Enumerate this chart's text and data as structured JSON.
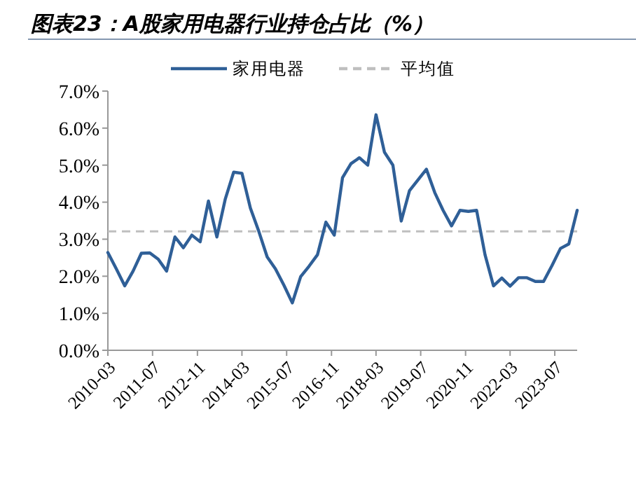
{
  "chart_data": {
    "type": "line",
    "title": "图表23：A股家用电器行业持仓占比（%）",
    "x": [
      "2010-03",
      "2010-06",
      "2010-09",
      "2010-12",
      "2011-03",
      "2011-06",
      "2011-09",
      "2011-12",
      "2012-03",
      "2012-06",
      "2012-09",
      "2012-12",
      "2013-03",
      "2013-06",
      "2013-09",
      "2013-12",
      "2014-03",
      "2014-06",
      "2014-09",
      "2014-12",
      "2015-03",
      "2015-06",
      "2015-09",
      "2015-12",
      "2016-03",
      "2016-06",
      "2016-09",
      "2016-12",
      "2017-03",
      "2017-06",
      "2017-09",
      "2017-12",
      "2018-03",
      "2018-06",
      "2018-09",
      "2018-12",
      "2019-03",
      "2019-06",
      "2019-09",
      "2019-12",
      "2020-03",
      "2020-06",
      "2020-09",
      "2020-12",
      "2021-03",
      "2021-06",
      "2021-09",
      "2021-12",
      "2022-03",
      "2022-06",
      "2022-09",
      "2022-12",
      "2023-03",
      "2023-06",
      "2023-09",
      "2023-12",
      "2024-03"
    ],
    "series": [
      {
        "name": "家用电器",
        "color": "#2f5f97",
        "values": [
          2.64,
          2.2,
          1.74,
          2.14,
          2.62,
          2.63,
          2.46,
          2.14,
          3.06,
          2.77,
          3.11,
          2.93,
          4.03,
          3.06,
          4.09,
          4.81,
          4.78,
          3.84,
          3.21,
          2.52,
          2.2,
          1.76,
          1.28,
          1.99,
          2.27,
          2.58,
          3.46,
          3.11,
          4.66,
          5.04,
          5.2,
          5.0,
          6.36,
          5.35,
          5.0,
          3.49,
          4.31,
          4.6,
          4.89,
          4.26,
          3.78,
          3.36,
          3.78,
          3.75,
          3.78,
          2.58,
          1.74,
          1.95,
          1.73,
          1.96,
          1.96,
          1.86,
          1.86,
          2.29,
          2.75,
          2.87,
          3.78
        ]
      }
    ],
    "ref_lines": [
      {
        "axis": "y",
        "value": 3.21,
        "label": "平均值",
        "color": "#bfbfbf",
        "line_style": "dashed"
      }
    ],
    "xlim": [
      "2010-03",
      "2024-03"
    ],
    "xticks": [
      {
        "value": "2010-03",
        "label": "2010-03"
      },
      {
        "value": "2011-07",
        "label": "2011-07"
      },
      {
        "value": "2012-11",
        "label": "2012-11"
      },
      {
        "value": "2014-03",
        "label": "2014-03"
      },
      {
        "value": "2015-07",
        "label": "2015-07"
      },
      {
        "value": "2016-11",
        "label": "2016-11"
      },
      {
        "value": "2018-03",
        "label": "2018-03"
      },
      {
        "value": "2019-07",
        "label": "2019-07"
      },
      {
        "value": "2020-11",
        "label": "2020-11"
      },
      {
        "value": "2022-03",
        "label": "2022-03"
      },
      {
        "value": "2023-07",
        "label": "2023-07"
      }
    ],
    "ylim": [
      0,
      7
    ],
    "yticks": [
      {
        "value": 0,
        "label": "0.0%"
      },
      {
        "value": 1,
        "label": "1.0%"
      },
      {
        "value": 2,
        "label": "2.0%"
      },
      {
        "value": 3,
        "label": "3.0%"
      },
      {
        "value": 4,
        "label": "4.0%"
      },
      {
        "value": 5,
        "label": "5.0%"
      },
      {
        "value": 6,
        "label": "6.0%"
      },
      {
        "value": 7,
        "label": "7.0%"
      }
    ],
    "grid": false,
    "legend": "top",
    "line_style": "solid",
    "marker": "none"
  }
}
